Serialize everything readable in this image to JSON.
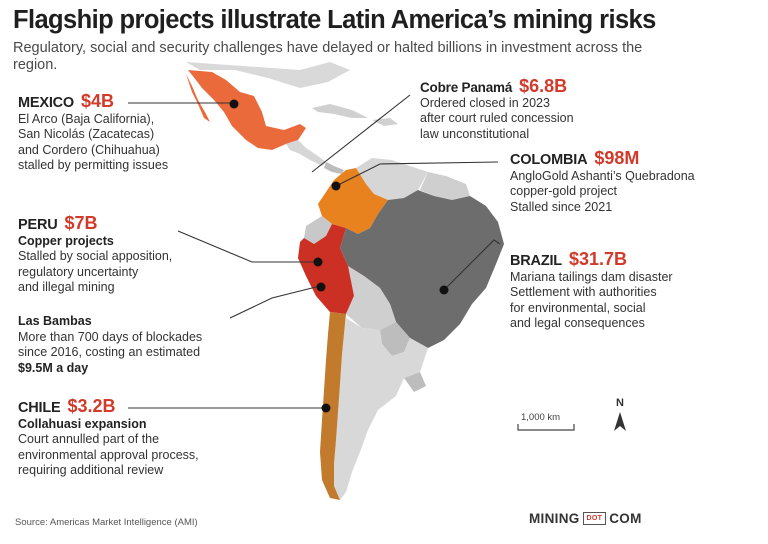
{
  "title": "Flagship projects illustrate Latin America’s mining risks",
  "subtitle": "Regulatory, social and security challenges have delayed or halted billions in investment across the region.",
  "colors": {
    "accent": "#d23a2a",
    "mexico": "#ea6a3c",
    "colombia": "#e8821e",
    "peru": "#cc2f24",
    "brazil": "#6d6d6d",
    "chile": "#c27a2c",
    "other_land": "#d4d4d4",
    "panama": "#bdbdbd"
  },
  "callouts": {
    "mexico": {
      "country": "MEXICO",
      "amount": "$4B",
      "lines": [
        "El Arco (Baja California),",
        "San Nicolás (Zacatecas)",
        "and Cordero (Chihuahua)",
        "stalled by permitting issues"
      ]
    },
    "panama": {
      "country": "Cobre Panamá",
      "amount": "$6.8B",
      "lines": [
        "Ordered closed in 2023",
        "after court ruled concession",
        "law unconstitutional"
      ]
    },
    "colombia": {
      "country": "COLOMBIA",
      "amount": "$98M",
      "lines": [
        "AngloGold Ashanti’s Quebradona",
        "copper-gold project",
        "Stalled since 2021"
      ]
    },
    "peru": {
      "country": "PERU",
      "amount": "$7B",
      "subtitle": "Copper projects",
      "lines": [
        "Stalled by social apposition,",
        "regulatory uncertainty",
        "and illegal mining"
      ]
    },
    "las_bambas": {
      "heading": "Las Bambas",
      "lines": [
        "More than 700 days of blockades",
        "since 2016, costing an estimated"
      ],
      "bold_line": "$9.5M a day"
    },
    "brazil": {
      "country": "BRAZIL",
      "amount": "$31.7B",
      "lines": [
        "Mariana tailings dam disaster",
        "Settlement with authorities",
        "for environmental, social",
        "and legal consequences"
      ]
    },
    "chile": {
      "country": "CHILE",
      "amount": "$3.2B",
      "subtitle": "Collahuasi expansion",
      "lines": [
        "Court annulled part of the",
        "environmental approval process,",
        "requiring additional review"
      ]
    }
  },
  "scale": {
    "label": "1,000 km"
  },
  "north": {
    "label": "N"
  },
  "source": "Source: Americas Market Intelligence (AMI)",
  "logo": {
    "left": "MINING",
    "middle": "DOT",
    "right": "COM"
  }
}
